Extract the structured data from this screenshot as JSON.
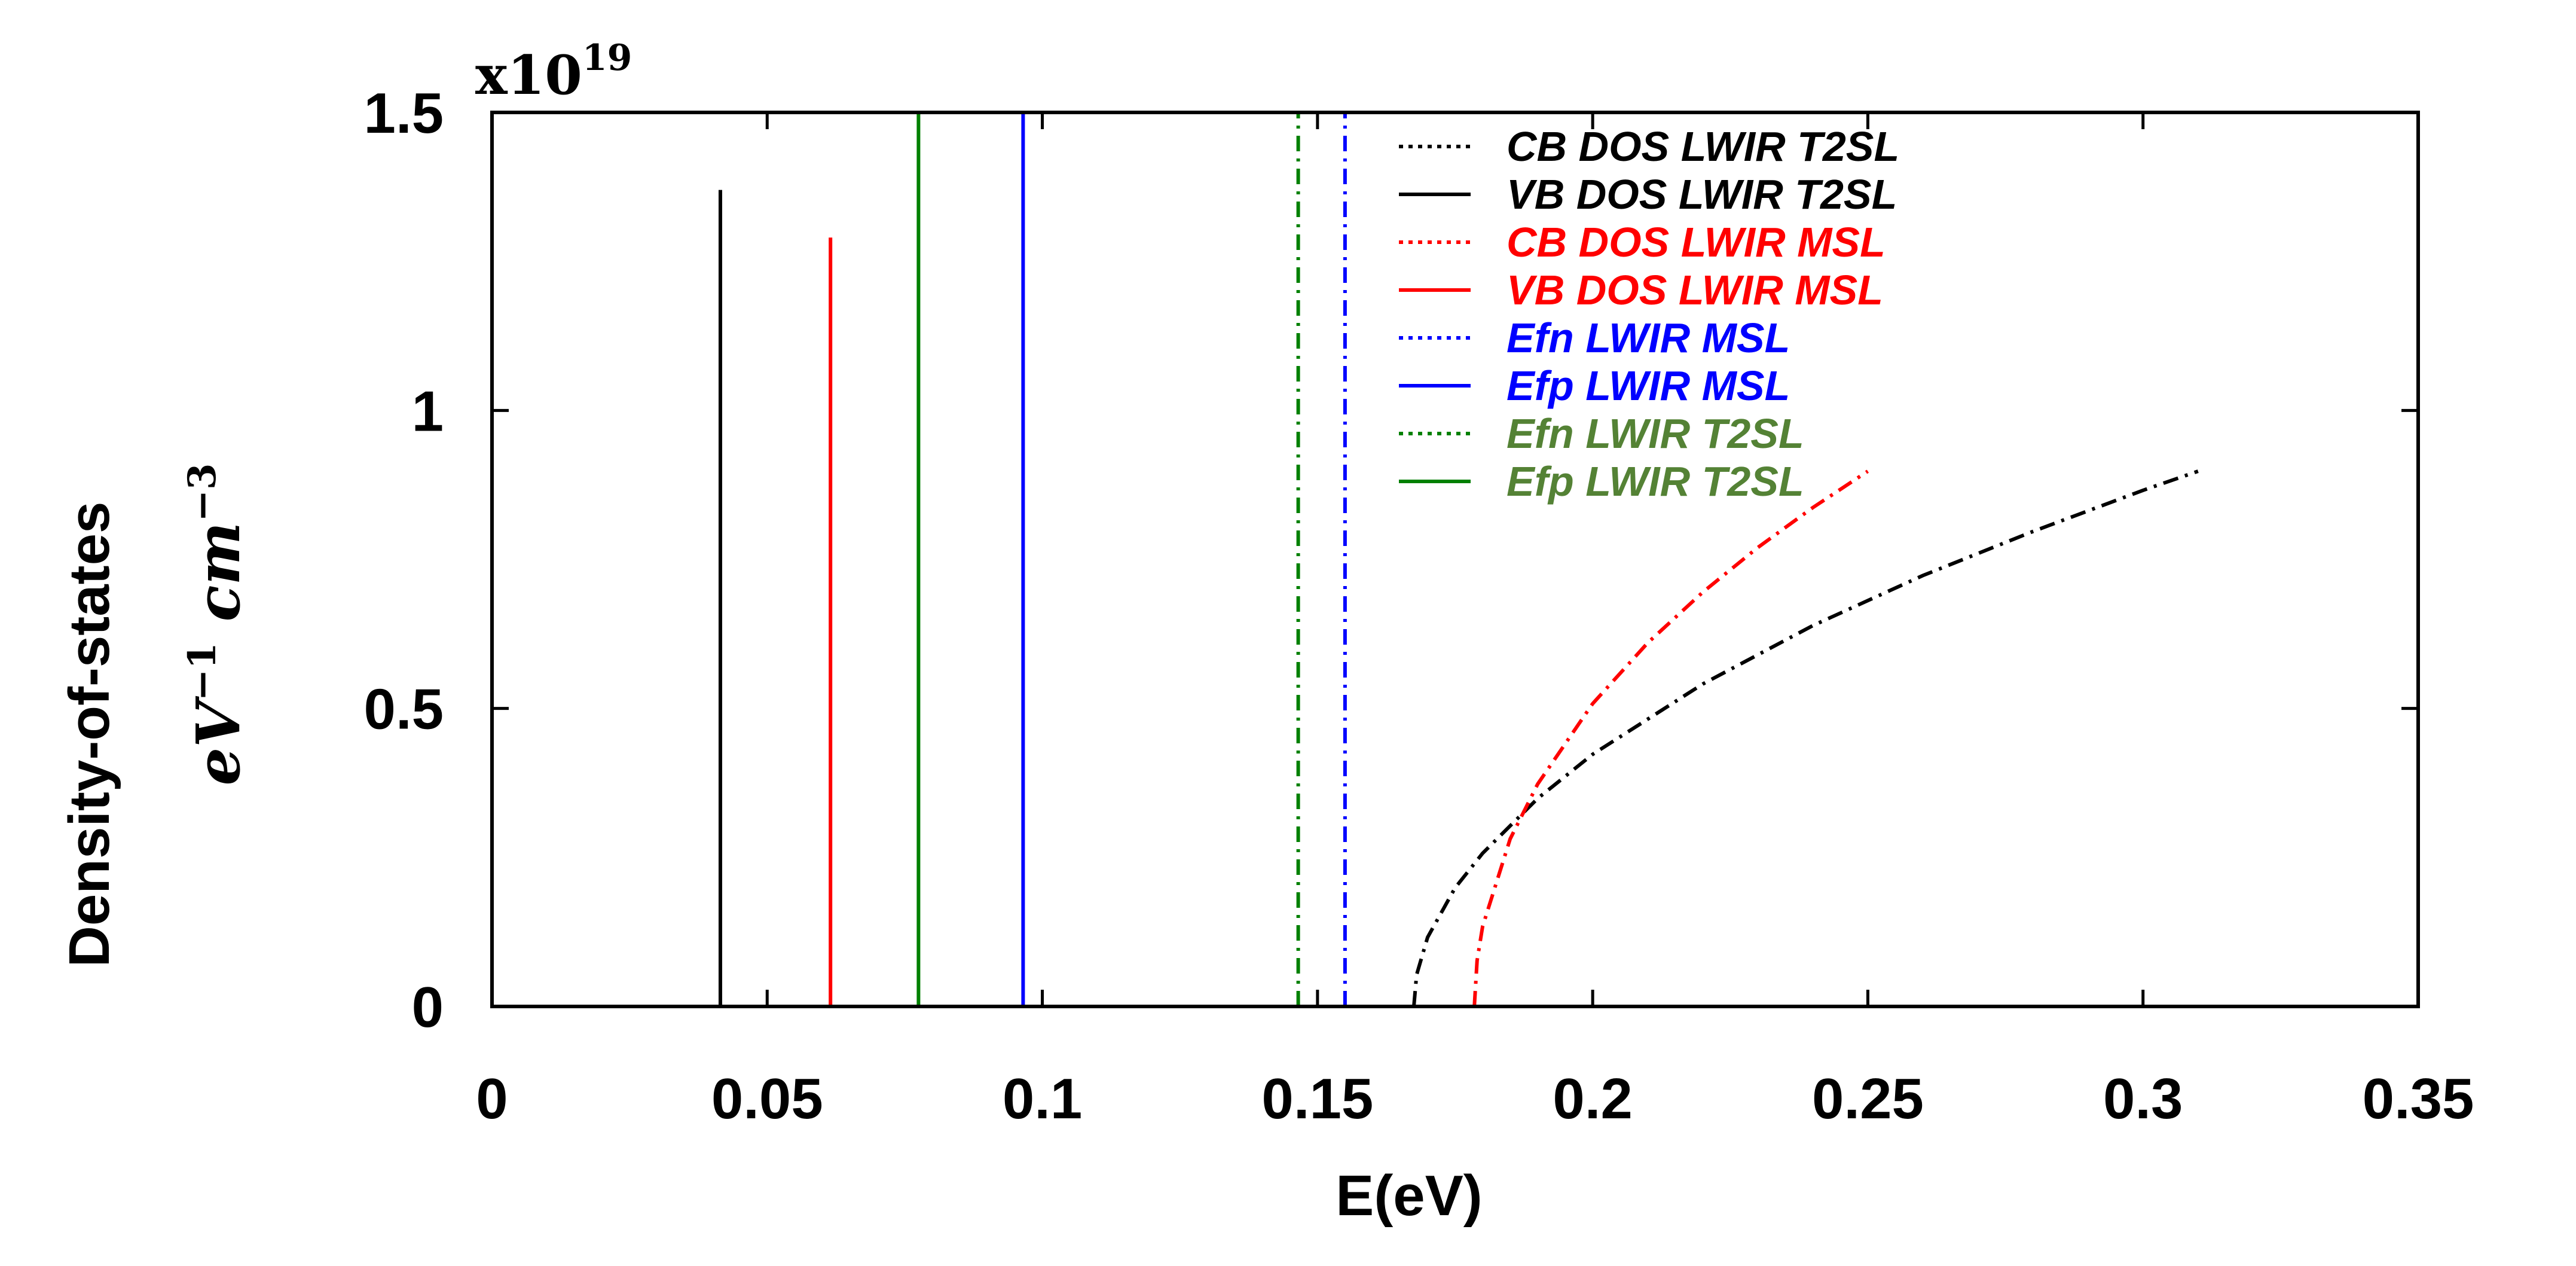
{
  "chart_data": {
    "type": "line",
    "title": "",
    "xlabel": "E(eV)",
    "ylabel": "Density-of-states",
    "ylabel_units": {
      "base1": "eV",
      "exp1": "−1",
      "base2": "cm",
      "exp2": "−3"
    },
    "y_scale": {
      "prefix": "x10",
      "exponent": "19"
    },
    "xlim": [
      0,
      0.35
    ],
    "ylim": [
      0,
      1.5
    ],
    "xticks": [
      0,
      0.05,
      0.1,
      0.15,
      0.2,
      0.25,
      0.3,
      0.35
    ],
    "xtick_labels": [
      "0",
      "0.05",
      "0.1",
      "0.15",
      "0.2",
      "0.25",
      "0.3",
      "0.35"
    ],
    "yticks": [
      0,
      0.5,
      1,
      1.5
    ],
    "ytick_labels": [
      "0",
      "0.5",
      "1",
      "1.5"
    ],
    "grid": false,
    "legend_position": "top-right",
    "series": [
      {
        "name": "CB DOS LWIR T2SL",
        "color": "#000000",
        "style": "dashdot",
        "legend_style": "dotted",
        "x": [
          0.1675,
          0.168,
          0.17,
          0.175,
          0.18,
          0.19,
          0.2,
          0.22,
          0.24,
          0.26,
          0.28,
          0.3,
          0.31
        ],
        "y": [
          0.0,
          0.053,
          0.116,
          0.199,
          0.257,
          0.349,
          0.423,
          0.541,
          0.639,
          0.723,
          0.797,
          0.866,
          0.898
        ]
      },
      {
        "name": "VB DOS LWIR T2SL",
        "color": "#000000",
        "style": "solid",
        "x": [
          0.0415,
          0.0415
        ],
        "y": [
          0,
          1.37
        ]
      },
      {
        "name": "CB DOS LWIR MSL",
        "color": "#ff0000",
        "style": "dashdot",
        "legend_style": "dotted",
        "x": [
          0.1785,
          0.179,
          0.18,
          0.185,
          0.19,
          0.2,
          0.21,
          0.22,
          0.23,
          0.24,
          0.25
        ],
        "y": [
          0.0,
          0.077,
          0.134,
          0.281,
          0.373,
          0.508,
          0.61,
          0.695,
          0.77,
          0.837,
          0.898
        ]
      },
      {
        "name": "VB DOS LWIR MSL",
        "color": "#ff0000",
        "style": "solid",
        "x": [
          0.0615,
          0.0615
        ],
        "y": [
          0,
          1.29
        ]
      },
      {
        "name": "Efn LWIR MSL",
        "color": "#0000ff",
        "style": "dashdot",
        "legend_style": "dotted",
        "x": [
          0.155,
          0.155
        ],
        "y": [
          0,
          1.5
        ]
      },
      {
        "name": "Efp LWIR MSL",
        "color": "#0000ff",
        "style": "solid",
        "x": [
          0.0965,
          0.0965
        ],
        "y": [
          0,
          1.5
        ]
      },
      {
        "name": "Efn LWIR T2SL",
        "color": "#008000",
        "legend_color": "#548235",
        "style": "dashdot",
        "legend_style": "dotted",
        "x": [
          0.1465,
          0.1465
        ],
        "y": [
          0,
          1.5
        ]
      },
      {
        "name": "Efp LWIR T2SL",
        "color": "#008000",
        "legend_color": "#548235",
        "style": "solid",
        "x": [
          0.0775,
          0.0775
        ],
        "y": [
          0,
          1.5
        ]
      }
    ]
  }
}
